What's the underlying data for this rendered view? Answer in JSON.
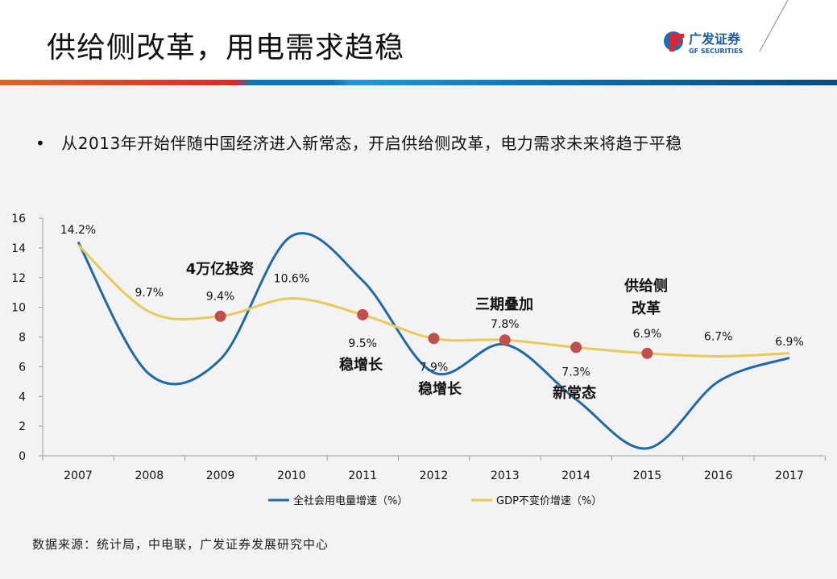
{
  "header": {
    "title": "供给侧改革，用电需求趋稳",
    "logo_cn": "广发证券",
    "logo_en": "GF SECURITIES"
  },
  "bullet": "从2013年开始伴随中国经济进入新常态，开启供给侧改革，电力需求未来将趋于平稳",
  "source": "数据来源：统计局，中电联，广发证券发展研究中心",
  "colors": {
    "electricity": "#1f6aa5",
    "gdp": "#e8c95a",
    "marker": "#c0504d",
    "accent_red": "#e8232a",
    "accent_blue": "#0a4a86"
  },
  "chart_data": {
    "type": "line",
    "categories": [
      "2007",
      "2008",
      "2009",
      "2010",
      "2011",
      "2012",
      "2013",
      "2014",
      "2015",
      "2016",
      "2017"
    ],
    "ylim": [
      0,
      16
    ],
    "yticks": [
      "0",
      "2",
      "4",
      "6",
      "8",
      "10",
      "12",
      "14",
      "16"
    ],
    "grid": false,
    "legend_placement": "bottom",
    "series": [
      {
        "name": "全社会用电量增速（%）",
        "values": [
          14.4,
          5.5,
          6.5,
          14.8,
          11.8,
          5.6,
          7.5,
          3.8,
          0.5,
          5.0,
          6.6
        ]
      },
      {
        "name": "GDP不变价增速（%）",
        "values": [
          14.2,
          9.7,
          9.4,
          10.6,
          9.5,
          7.9,
          7.8,
          7.3,
          6.9,
          6.7,
          6.9
        ],
        "labels": [
          "14.2%",
          "9.7%",
          "9.4%",
          "10.6%",
          "9.5%",
          "7.9%",
          "7.8%",
          "7.3%",
          "6.9%",
          "6.7%",
          "6.9%"
        ],
        "highlighted": [
          "2009",
          "2011",
          "2012",
          "2013",
          "2014",
          "2015"
        ]
      }
    ],
    "annotations": [
      {
        "text": "4万亿投资",
        "category": "2009",
        "position": "above"
      },
      {
        "text": "稳增长",
        "category": "2011",
        "position": "below"
      },
      {
        "text": "稳增长",
        "category": "2012",
        "position": "below"
      },
      {
        "text": "三期叠加",
        "category": "2013",
        "position": "above"
      },
      {
        "text": "新常态",
        "category": "2014",
        "position": "below"
      },
      {
        "text": "供给侧",
        "category": "2015",
        "position": "above"
      },
      {
        "text": "改革",
        "category": "2015",
        "position": "above"
      }
    ]
  }
}
